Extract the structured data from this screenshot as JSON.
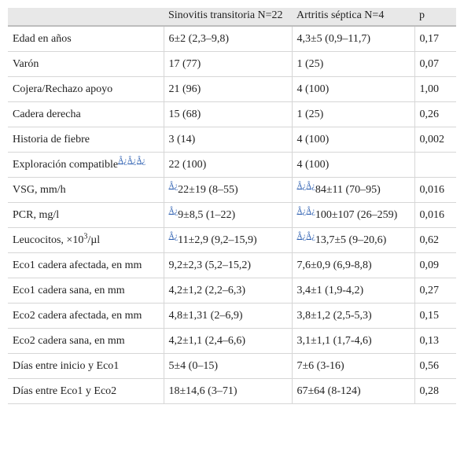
{
  "table": {
    "header": [
      "Sinovitis transitoria N=22",
      "Artritis séptica N=4",
      "p"
    ],
    "rows": [
      [
        [
          {
            "text": "Edad en años"
          }
        ],
        [
          {
            "text": "6±2 (2,3–9,8)"
          }
        ],
        [
          {
            "text": "4,3±5 (0,9–11,7)"
          }
        ],
        [
          {
            "text": "0,17"
          }
        ]
      ],
      [
        [
          {
            "text": "Varón"
          }
        ],
        [
          {
            "text": "17 (77)"
          }
        ],
        [
          {
            "text": "1 (25)"
          }
        ],
        [
          {
            "text": "0,07"
          }
        ]
      ],
      [
        [
          {
            "text": "Cojera/Rechazo apoyo"
          }
        ],
        [
          {
            "text": "21 (96)"
          }
        ],
        [
          {
            "text": "4 (100)"
          }
        ],
        [
          {
            "text": "1,00"
          }
        ]
      ],
      [
        [
          {
            "text": "Cadera derecha"
          }
        ],
        [
          {
            "text": "15 (68)"
          }
        ],
        [
          {
            "text": "1 (25)"
          }
        ],
        [
          {
            "text": "0,26"
          }
        ]
      ],
      [
        [
          {
            "text": "Historia de fiebre"
          }
        ],
        [
          {
            "text": "3 (14)"
          }
        ],
        [
          {
            "text": "4 (100)"
          }
        ],
        [
          {
            "text": "0,002"
          }
        ]
      ],
      [
        [
          {
            "text": "Exploración compatible"
          },
          {
            "text": "Â¿Â¿Â¿",
            "style": "link"
          }
        ],
        [
          {
            "text": "22 (100)"
          }
        ],
        [
          {
            "text": "4 (100)"
          }
        ],
        []
      ],
      [
        [
          {
            "text": "VSG, mm/h"
          }
        ],
        [
          {
            "text": "Â¿",
            "style": "link"
          },
          {
            "text": "22±19 (8–55)"
          }
        ],
        [
          {
            "text": "Â¿Â¿",
            "style": "link"
          },
          {
            "text": "84±11 (70–95)"
          }
        ],
        [
          {
            "text": "0,016"
          }
        ]
      ],
      [
        [
          {
            "text": "PCR, mg/l"
          }
        ],
        [
          {
            "text": "Â¿",
            "style": "link"
          },
          {
            "text": "9±8,5 (1–22)"
          }
        ],
        [
          {
            "text": "Â¿Â¿",
            "style": "link"
          },
          {
            "text": "100±107 (26–259)"
          }
        ],
        [
          {
            "text": "0,016"
          }
        ]
      ],
      [
        [
          {
            "text": "Leucocitos, ×10"
          },
          {
            "text": "3",
            "style": "sup"
          },
          {
            "text": "/µl"
          }
        ],
        [
          {
            "text": "Â¿",
            "style": "link"
          },
          {
            "text": "11±2,9 (9,2–15,9)"
          }
        ],
        [
          {
            "text": "Â¿Â¿",
            "style": "link"
          },
          {
            "text": "13,7±5 (9–20,6)"
          }
        ],
        [
          {
            "text": "0,62"
          }
        ]
      ],
      [
        [
          {
            "text": "Eco1 cadera afectada, en mm"
          }
        ],
        [
          {
            "text": "9,2±2,3 (5,2–15,2)"
          }
        ],
        [
          {
            "text": "7,6±0,9 (6,9-8,8)"
          }
        ],
        [
          {
            "text": "0,09"
          }
        ]
      ],
      [
        [
          {
            "text": "Eco1 cadera sana, en mm"
          }
        ],
        [
          {
            "text": "4,2±1,2 (2,2–6,3)"
          }
        ],
        [
          {
            "text": "3,4±1 (1,9-4,2)"
          }
        ],
        [
          {
            "text": "0,27"
          }
        ]
      ],
      [
        [
          {
            "text": "Eco2 cadera afectada, en mm"
          }
        ],
        [
          {
            "text": "4,8±1,31 (2–6,9)"
          }
        ],
        [
          {
            "text": "3,8±1,2 (2,5-5,3)"
          }
        ],
        [
          {
            "text": "0,15"
          }
        ]
      ],
      [
        [
          {
            "text": "Eco2 cadera sana, en mm"
          }
        ],
        [
          {
            "text": "4,2±1,1 (2,4–6,6)"
          }
        ],
        [
          {
            "text": "3,1±1,1 (1,7-4,6)"
          }
        ],
        [
          {
            "text": "0,13"
          }
        ]
      ],
      [
        [
          {
            "text": "Días entre inicio y Eco1"
          }
        ],
        [
          {
            "text": "5±4 (0–15)"
          }
        ],
        [
          {
            "text": "7±6 (3-16)"
          }
        ],
        [
          {
            "text": "0,56"
          }
        ]
      ],
      [
        [
          {
            "text": "Días entre Eco1 y Eco2"
          }
        ],
        [
          {
            "text": "18±14,6 (3–71)"
          }
        ],
        [
          {
            "text": "67±64 (8-124)"
          }
        ],
        [
          {
            "text": "0,28"
          }
        ]
      ]
    ]
  }
}
